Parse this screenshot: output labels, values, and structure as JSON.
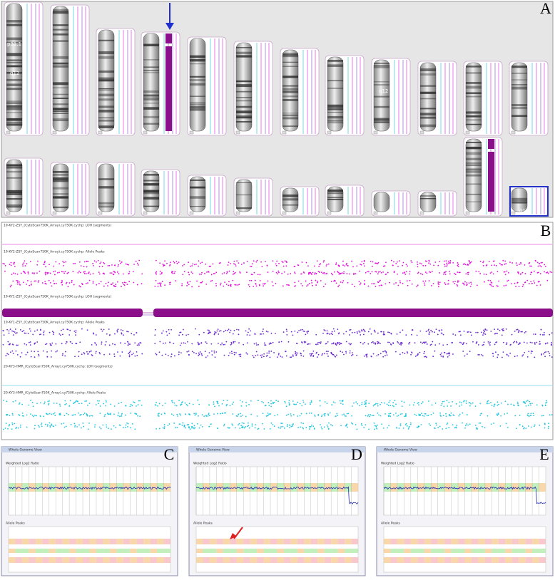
{
  "panels": {
    "a": "A",
    "b": "B",
    "c": "C",
    "d": "D",
    "e": "E"
  },
  "panel_a": {
    "band_labels": [
      "p31.1",
      "q12",
      "q12",
      "q12"
    ]
  },
  "panel_b": {
    "tracks": [
      "19-KY2-ZSY_(CytoScan750K_Array).cy750K.cychp: LOH (segments)",
      "19-KY2-ZSY_(CytoScan750K_Array).cy750K.cychp: Allele Peaks",
      "19-KY1-ZSY_(CytoScan750K_Array).cy750K.cychp: LOH (segments)",
      "19-KY1-ZSY_(CytoScan750K_Array).cy750K.cychp: Allele Peaks",
      "20-KY3-HMR_(CytoScan750K_Array).cy750K.cychp: LOH (segments)",
      "20-KY3-HMR_(CytoScan750K_Array).cy750K.cychp: Allele Peaks"
    ]
  },
  "genome_view": {
    "window_title": "Whole Genome View",
    "top_track": "Weighted Log2 Ratio",
    "bottom_track": "Allele Peaks"
  }
}
